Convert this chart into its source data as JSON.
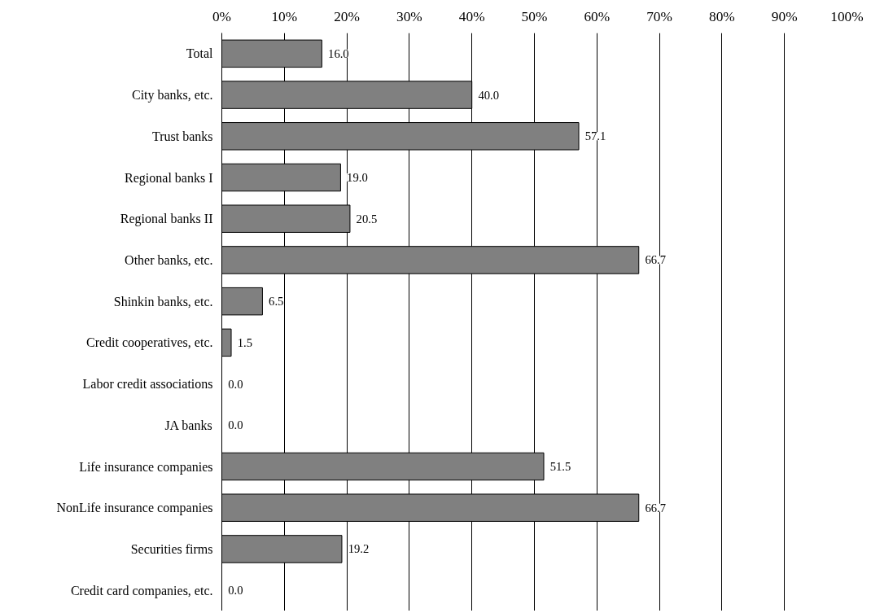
{
  "chart_data": {
    "type": "bar",
    "orientation": "horizontal",
    "categories": [
      "Total",
      "City banks, etc.",
      "Trust banks",
      "Regional banks I",
      "Regional banks II",
      "Other banks, etc.",
      "Shinkin banks, etc.",
      "Credit cooperatives, etc.",
      "Labor credit associations",
      "JA banks",
      "Life insurance companies",
      "NonLife insurance companies",
      "Securities firms",
      "Credit card companies, etc."
    ],
    "values": [
      16.0,
      40.0,
      57.1,
      19.0,
      20.5,
      66.7,
      6.5,
      1.5,
      0.0,
      0.0,
      51.5,
      66.7,
      19.2,
      0.0
    ],
    "value_labels": [
      "16.0",
      "40.0",
      "57.1",
      "19.0",
      "20.5",
      "66.7",
      "6.5",
      "1.5",
      "0.0",
      "0.0",
      "51.5",
      "66.7",
      "19.2",
      "0.0"
    ],
    "color": "#808080",
    "xlim": [
      0,
      100
    ],
    "xticks": [
      {
        "value": 0,
        "label": "0%"
      },
      {
        "value": 10,
        "label": "10%"
      },
      {
        "value": 20,
        "label": "20%"
      },
      {
        "value": 30,
        "label": "30%"
      },
      {
        "value": 40,
        "label": "40%"
      },
      {
        "value": 50,
        "label": "50%"
      },
      {
        "value": 60,
        "label": "60%"
      },
      {
        "value": 70,
        "label": "70%"
      },
      {
        "value": 80,
        "label": "80%"
      },
      {
        "value": 90,
        "label": "90%"
      },
      {
        "value": 100,
        "label": "100%"
      }
    ],
    "grid": "x"
  }
}
